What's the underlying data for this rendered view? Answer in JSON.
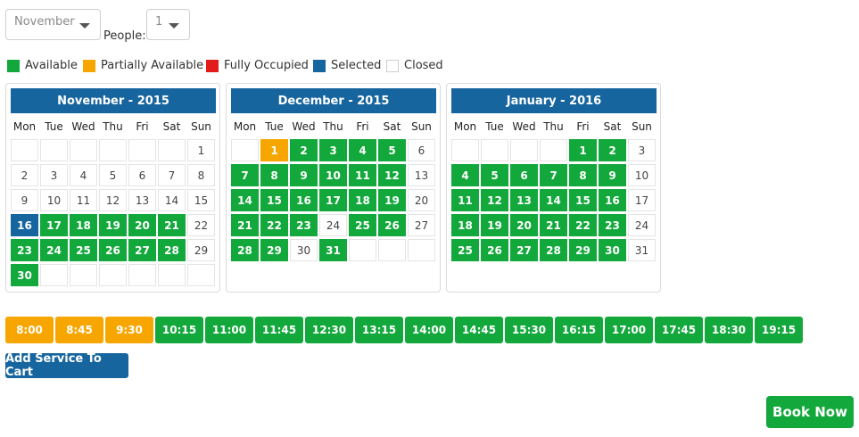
{
  "controls": {
    "month_select": {
      "value": "November"
    },
    "people_label": "People:",
    "people_select": {
      "value": "1"
    }
  },
  "legend": [
    {
      "label": "Available",
      "color": "#13a83c"
    },
    {
      "label": "Partially Available",
      "color": "#f7a600"
    },
    {
      "label": "Fully Occupied",
      "color": "#e21b1b"
    },
    {
      "label": "Selected",
      "color": "#17659e"
    },
    {
      "label": "Closed",
      "color": "#ffffff"
    }
  ],
  "weekdays": [
    "Mon",
    "Tue",
    "Wed",
    "Thu",
    "Fri",
    "Sat",
    "Sun"
  ],
  "calendars": [
    {
      "title": "November - 2015",
      "days": [
        null,
        null,
        null,
        null,
        null,
        null,
        {
          "d": "1",
          "s": "closed"
        },
        {
          "d": "2",
          "s": "closed"
        },
        {
          "d": "3",
          "s": "closed"
        },
        {
          "d": "4",
          "s": "closed"
        },
        {
          "d": "5",
          "s": "closed"
        },
        {
          "d": "6",
          "s": "closed"
        },
        {
          "d": "7",
          "s": "closed"
        },
        {
          "d": "8",
          "s": "closed"
        },
        {
          "d": "9",
          "s": "closed"
        },
        {
          "d": "10",
          "s": "closed"
        },
        {
          "d": "11",
          "s": "closed"
        },
        {
          "d": "12",
          "s": "closed"
        },
        {
          "d": "13",
          "s": "closed"
        },
        {
          "d": "14",
          "s": "closed"
        },
        {
          "d": "15",
          "s": "closed"
        },
        {
          "d": "16",
          "s": "selected"
        },
        {
          "d": "17",
          "s": "available"
        },
        {
          "d": "18",
          "s": "available"
        },
        {
          "d": "19",
          "s": "available"
        },
        {
          "d": "20",
          "s": "available"
        },
        {
          "d": "21",
          "s": "available"
        },
        {
          "d": "22",
          "s": "closed"
        },
        {
          "d": "23",
          "s": "available"
        },
        {
          "d": "24",
          "s": "available"
        },
        {
          "d": "25",
          "s": "available"
        },
        {
          "d": "26",
          "s": "available"
        },
        {
          "d": "27",
          "s": "available"
        },
        {
          "d": "28",
          "s": "available"
        },
        {
          "d": "29",
          "s": "closed"
        },
        {
          "d": "30",
          "s": "available"
        },
        null,
        null,
        null,
        null,
        null,
        null
      ]
    },
    {
      "title": "December - 2015",
      "days": [
        null,
        {
          "d": "1",
          "s": "partial"
        },
        {
          "d": "2",
          "s": "available"
        },
        {
          "d": "3",
          "s": "available"
        },
        {
          "d": "4",
          "s": "available"
        },
        {
          "d": "5",
          "s": "available"
        },
        {
          "d": "6",
          "s": "closed"
        },
        {
          "d": "7",
          "s": "available"
        },
        {
          "d": "8",
          "s": "available"
        },
        {
          "d": "9",
          "s": "available"
        },
        {
          "d": "10",
          "s": "available"
        },
        {
          "d": "11",
          "s": "available"
        },
        {
          "d": "12",
          "s": "available"
        },
        {
          "d": "13",
          "s": "closed"
        },
        {
          "d": "14",
          "s": "available"
        },
        {
          "d": "15",
          "s": "available"
        },
        {
          "d": "16",
          "s": "available"
        },
        {
          "d": "17",
          "s": "available"
        },
        {
          "d": "18",
          "s": "available"
        },
        {
          "d": "19",
          "s": "available"
        },
        {
          "d": "20",
          "s": "closed"
        },
        {
          "d": "21",
          "s": "available"
        },
        {
          "d": "22",
          "s": "available"
        },
        {
          "d": "23",
          "s": "available"
        },
        {
          "d": "24",
          "s": "closed"
        },
        {
          "d": "25",
          "s": "available"
        },
        {
          "d": "26",
          "s": "available"
        },
        {
          "d": "27",
          "s": "closed"
        },
        {
          "d": "28",
          "s": "available"
        },
        {
          "d": "29",
          "s": "available"
        },
        {
          "d": "30",
          "s": "closed"
        },
        {
          "d": "31",
          "s": "available"
        },
        null,
        null,
        null
      ]
    },
    {
      "title": "January - 2016",
      "days": [
        null,
        null,
        null,
        null,
        {
          "d": "1",
          "s": "available"
        },
        {
          "d": "2",
          "s": "available"
        },
        {
          "d": "3",
          "s": "closed"
        },
        {
          "d": "4",
          "s": "available"
        },
        {
          "d": "5",
          "s": "available"
        },
        {
          "d": "6",
          "s": "available"
        },
        {
          "d": "7",
          "s": "available"
        },
        {
          "d": "8",
          "s": "available"
        },
        {
          "d": "9",
          "s": "available"
        },
        {
          "d": "10",
          "s": "closed"
        },
        {
          "d": "11",
          "s": "available"
        },
        {
          "d": "12",
          "s": "available"
        },
        {
          "d": "13",
          "s": "available"
        },
        {
          "d": "14",
          "s": "available"
        },
        {
          "d": "15",
          "s": "available"
        },
        {
          "d": "16",
          "s": "available"
        },
        {
          "d": "17",
          "s": "closed"
        },
        {
          "d": "18",
          "s": "available"
        },
        {
          "d": "19",
          "s": "available"
        },
        {
          "d": "20",
          "s": "available"
        },
        {
          "d": "21",
          "s": "available"
        },
        {
          "d": "22",
          "s": "available"
        },
        {
          "d": "23",
          "s": "available"
        },
        {
          "d": "24",
          "s": "closed"
        },
        {
          "d": "25",
          "s": "available"
        },
        {
          "d": "26",
          "s": "available"
        },
        {
          "d": "27",
          "s": "available"
        },
        {
          "d": "28",
          "s": "available"
        },
        {
          "d": "29",
          "s": "available"
        },
        {
          "d": "30",
          "s": "available"
        },
        {
          "d": "31",
          "s": "closed"
        }
      ]
    }
  ],
  "time_slots": [
    {
      "time": "8:00",
      "status": "partial"
    },
    {
      "time": "8:45",
      "status": "partial"
    },
    {
      "time": "9:30",
      "status": "partial"
    },
    {
      "time": "10:15",
      "status": "available"
    },
    {
      "time": "11:00",
      "status": "available"
    },
    {
      "time": "11:45",
      "status": "available"
    },
    {
      "time": "12:30",
      "status": "available"
    },
    {
      "time": "13:15",
      "status": "available"
    },
    {
      "time": "14:00",
      "status": "available"
    },
    {
      "time": "14:45",
      "status": "available"
    },
    {
      "time": "15:30",
      "status": "available"
    },
    {
      "time": "16:15",
      "status": "available"
    },
    {
      "time": "17:00",
      "status": "available"
    },
    {
      "time": "17:45",
      "status": "available"
    },
    {
      "time": "18:30",
      "status": "available"
    },
    {
      "time": "19:15",
      "status": "available"
    }
  ],
  "actions": {
    "add_service_label": "Add Service To Cart",
    "book_now_label": "Book Now"
  }
}
